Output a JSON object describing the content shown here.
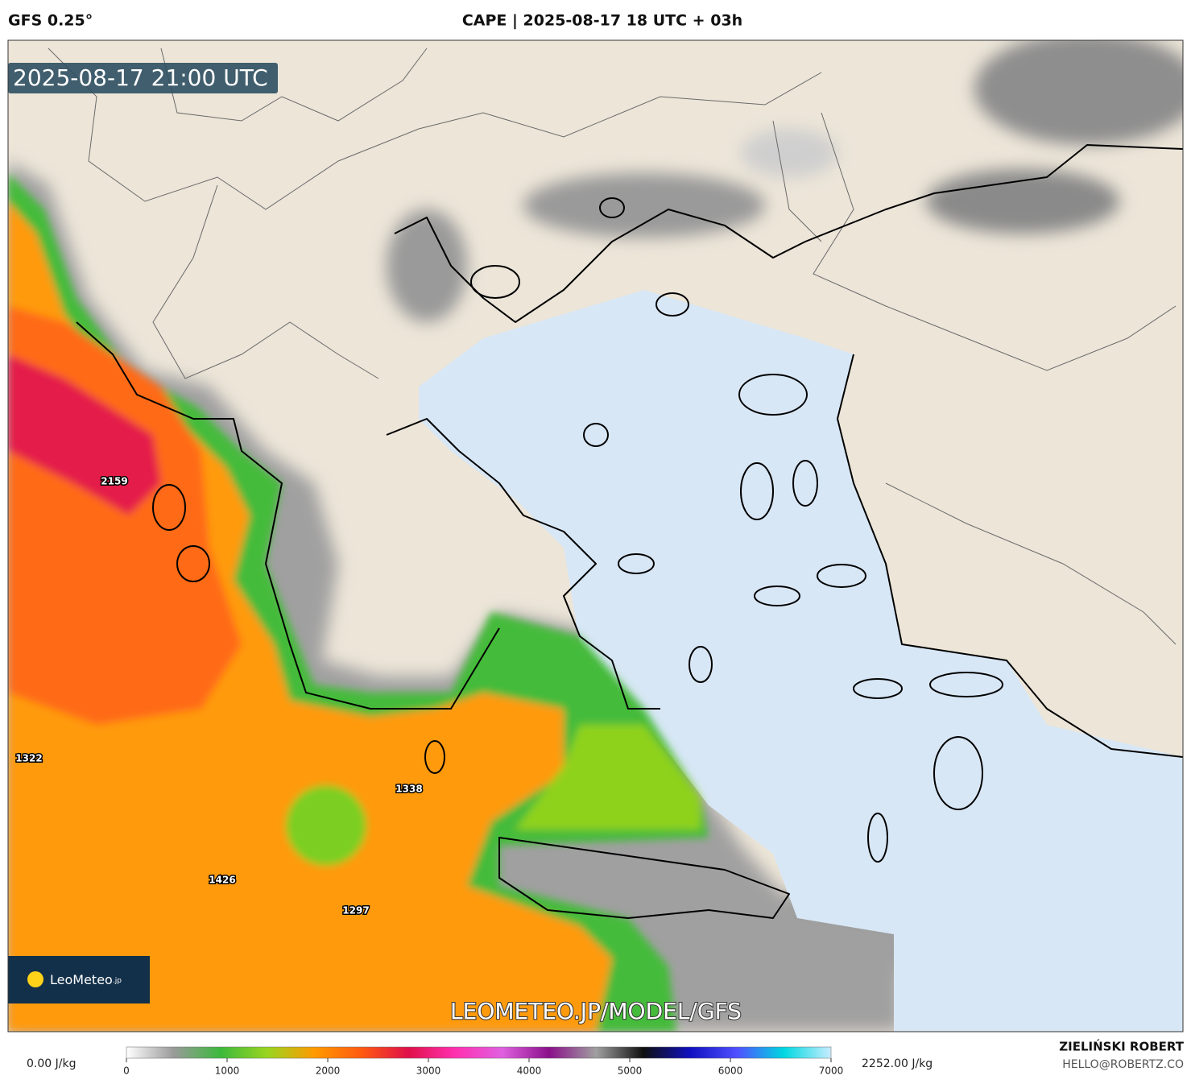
{
  "header": {
    "model": "GFS 0.25°",
    "title": "CAPE | 2025-08-17 18 UTC + 03h"
  },
  "map": {
    "timestamp": "2025-08-17 21:00 UTC",
    "labels": [
      2159,
      1322,
      1338,
      1426,
      1297
    ],
    "watermark": "LEOMETEO.JP/MODEL/GFS",
    "logo": {
      "brand": "LeoMeteo",
      "suffix": ".jp"
    }
  },
  "colorbar": {
    "min_label": "0.00 J/kg",
    "max_label": "2252.00 J/kg",
    "ticks": [
      0,
      1000,
      2000,
      3000,
      4000,
      5000,
      6000,
      7000
    ],
    "colors": [
      "#ffffff",
      "#9a9a9a",
      "#3cb93c",
      "#9ad520",
      "#ff9a00",
      "#ff5a10",
      "#e0104a",
      "#ff30b0",
      "#e060e0",
      "#8a108a",
      "#a0a0a0",
      "#101010",
      "#1010c0",
      "#5050ff",
      "#00d8e0",
      "#c8ecff"
    ]
  },
  "credits": {
    "author": "ZIELIŃSKI ROBERT",
    "contact": "HELLO@ROBERTZ.CO"
  }
}
